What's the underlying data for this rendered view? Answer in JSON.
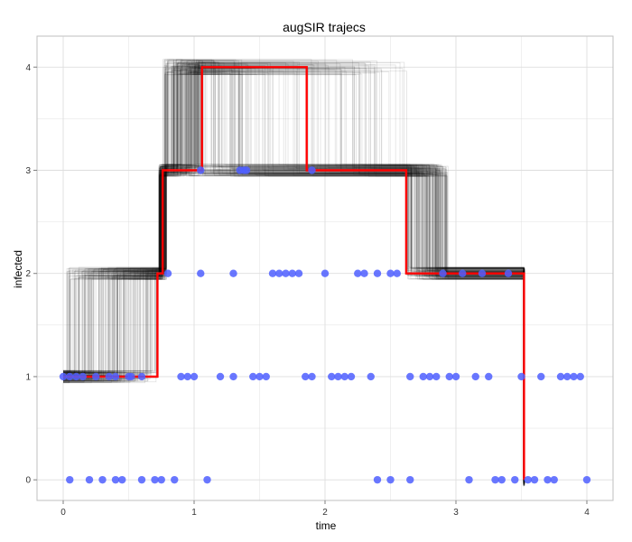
{
  "chart_data": {
    "type": "line",
    "title": "augSIR trajecs",
    "xlabel": "time",
    "ylabel": "infected",
    "xlim": [
      -0.2,
      4.2
    ],
    "ylim": [
      -0.2,
      4.3
    ],
    "x_ticks": [
      "0",
      "1",
      "2",
      "3",
      "4"
    ],
    "y_ticks": [
      "0",
      "1",
      "2",
      "3",
      "4"
    ],
    "grid": true,
    "legend": "none",
    "colors": {
      "trajectory": "#000000",
      "step_line": "#ff0000",
      "points": "#4f5fff",
      "grid": "#dedede",
      "panel_border": "#bfbfbf"
    },
    "series": [
      {
        "kind": "step",
        "x": [
          0.0,
          0.72,
          0.76,
          1.06,
          1.86,
          2.62,
          3.52
        ],
        "y": [
          1,
          2,
          3,
          4,
          3,
          2,
          0
        ]
      },
      {
        "kind": "scatter",
        "x": [
          0.0,
          0.05,
          0.1,
          0.15,
          0.25,
          0.35,
          0.4,
          0.5,
          0.52,
          0.6,
          1.05,
          1.35,
          1.38,
          1.4,
          1.9,
          0.8,
          1.05,
          1.3,
          1.6,
          1.65,
          1.7,
          1.75,
          1.8,
          2.0,
          2.25,
          2.3,
          2.4,
          2.5,
          2.55,
          2.9,
          3.05,
          3.2,
          3.4,
          0.9,
          0.95,
          1.0,
          1.2,
          1.3,
          1.45,
          1.5,
          1.55,
          1.85,
          1.9,
          2.05,
          2.1,
          2.15,
          2.2,
          2.35,
          2.65,
          2.75,
          2.8,
          2.85,
          2.95,
          3.0,
          3.15,
          3.25,
          3.5,
          3.65,
          3.8,
          3.85,
          3.9,
          3.95,
          0.05,
          0.2,
          0.3,
          0.4,
          0.45,
          0.6,
          0.7,
          0.75,
          0.85,
          1.1,
          2.4,
          2.5,
          2.65,
          3.1,
          3.3,
          3.35,
          3.45,
          3.55,
          3.6,
          3.7,
          3.75,
          4.0
        ],
        "y": [
          1,
          1,
          1,
          1,
          1,
          1,
          1,
          1,
          1,
          1,
          3,
          3,
          3,
          3,
          3,
          2,
          2,
          2,
          2,
          2,
          2,
          2,
          2,
          2,
          2,
          2,
          2,
          2,
          2,
          2,
          2,
          2,
          2,
          1,
          1,
          1,
          1,
          1,
          1,
          1,
          1,
          1,
          1,
          1,
          1,
          1,
          1,
          1,
          1,
          1,
          1,
          1,
          1,
          1,
          1,
          1,
          1,
          1,
          1,
          1,
          1,
          1,
          0,
          0,
          0,
          0,
          0,
          0,
          0,
          0,
          0,
          0,
          0,
          0,
          0,
          0,
          0,
          0,
          0,
          0,
          0,
          0,
          0,
          0
        ]
      }
    ]
  }
}
